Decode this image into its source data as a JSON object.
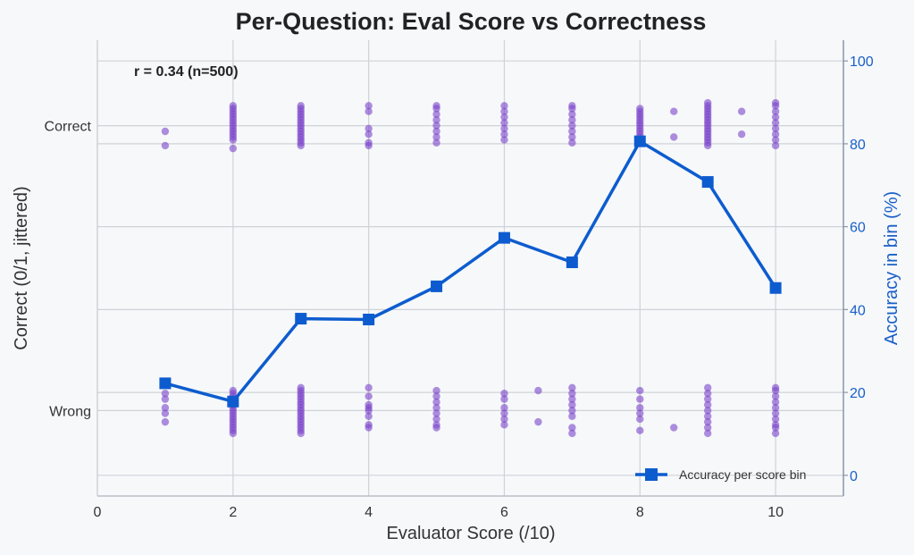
{
  "chart_data": {
    "type": "scatter",
    "title": "Per-Question: Eval Score vs Correctness",
    "xlabel": "Evaluator Score (/10)",
    "ylabel": "Correct (0/1, jittered)",
    "y2label": "Accuracy in bin (%)",
    "annotation": "r = 0.34  (n=500)",
    "xlim": [
      0,
      11
    ],
    "ylim": [
      -0.3,
      1.3
    ],
    "y2lim": [
      -5,
      105
    ],
    "x_ticks": [
      0,
      2,
      4,
      6,
      8,
      10
    ],
    "y_ticks": [
      {
        "value": 0,
        "label": "Wrong"
      },
      {
        "value": 1,
        "label": "Correct"
      }
    ],
    "y2_ticks": [
      0,
      20,
      40,
      60,
      80,
      100
    ],
    "grid": true,
    "legend": {
      "placement": "lower-right",
      "entries": [
        "Accuracy per score bin"
      ]
    },
    "colors": {
      "points": "#7b45c9",
      "line": "#0d5ccf",
      "right_axis": "#1a5fc8"
    },
    "series": [
      {
        "name": "Accuracy per score bin",
        "type": "line",
        "axis": "right",
        "x": [
          1,
          2,
          3,
          4,
          5,
          6,
          7,
          8,
          9,
          10
        ],
        "y": [
          22.2,
          17.8,
          37.8,
          37.6,
          45.6,
          57.3,
          51.4,
          80.6,
          70.8,
          45.2
        ]
      }
    ],
    "scatter_groups": [
      {
        "x": 1,
        "correct": [
          0.98,
          0.93
        ],
        "wrong": [
          0.06,
          0.04,
          0.01,
          -0.01,
          -0.04
        ]
      },
      {
        "x": 2,
        "correct": [
          1.07,
          1.06,
          1.05,
          1.04,
          1.03,
          1.02,
          1.01,
          1.0,
          0.99,
          0.98,
          0.97,
          0.96,
          0.95,
          0.92
        ],
        "wrong": [
          0.07,
          0.06,
          0.05,
          0.04,
          0.03,
          0.02,
          0.01,
          0.0,
          -0.01,
          -0.02,
          -0.03,
          -0.04,
          -0.05,
          -0.06,
          -0.07,
          -0.08
        ]
      },
      {
        "x": 3,
        "correct": [
          1.07,
          1.06,
          1.05,
          1.04,
          1.03,
          1.02,
          1.01,
          1.0,
          0.99,
          0.98,
          0.97,
          0.96,
          0.95,
          0.94,
          0.93
        ],
        "wrong": [
          0.08,
          0.07,
          0.06,
          0.05,
          0.04,
          0.03,
          0.02,
          0.01,
          0.0,
          -0.01,
          -0.02,
          -0.03,
          -0.04,
          -0.05,
          -0.06,
          -0.07,
          -0.08
        ]
      },
      {
        "x": 4,
        "correct": [
          1.07,
          1.05,
          0.99,
          0.97,
          0.94,
          0.93
        ],
        "wrong": [
          0.08,
          0.05,
          0.02,
          0.01,
          0.0,
          -0.02,
          -0.05,
          -0.06
        ]
      },
      {
        "x": 5,
        "correct": [
          1.07,
          1.06,
          1.04,
          1.02,
          1.0,
          0.98,
          0.96,
          0.94
        ],
        "wrong": [
          0.07,
          0.05,
          0.03,
          0.01,
          -0.01,
          -0.03,
          -0.05,
          -0.06
        ]
      },
      {
        "x": 6,
        "correct": [
          1.07,
          1.05,
          1.03,
          1.01,
          0.99,
          0.97,
          0.95
        ],
        "wrong": [
          0.06,
          0.04,
          0.01,
          -0.01,
          -0.03,
          -0.05
        ]
      },
      {
        "x": 6.5,
        "correct": [],
        "wrong": [
          0.07,
          -0.04
        ]
      },
      {
        "x": 7,
        "correct": [
          1.07,
          1.06,
          1.04,
          1.02,
          1.0,
          0.98,
          0.96,
          0.94
        ],
        "wrong": [
          0.08,
          0.06,
          0.04,
          0.02,
          0.0,
          -0.02,
          -0.06,
          -0.08
        ]
      },
      {
        "x": 8,
        "correct": [
          1.06,
          1.05,
          1.04,
          1.03,
          1.02,
          1.01,
          1.0,
          0.99,
          0.98,
          0.97,
          0.96,
          0.95,
          0.94
        ],
        "wrong": [
          0.07,
          0.04,
          0.01,
          -0.01,
          -0.03,
          -0.07
        ]
      },
      {
        "x": 8.5,
        "correct": [
          1.05,
          0.96
        ],
        "wrong": [
          -0.06
        ]
      },
      {
        "x": 9,
        "correct": [
          1.08,
          1.07,
          1.06,
          1.05,
          1.04,
          1.03,
          1.02,
          1.01,
          1.0,
          0.99,
          0.98,
          0.97,
          0.96,
          0.95,
          0.94,
          0.93
        ],
        "wrong": [
          0.08,
          0.06,
          0.04,
          0.02,
          0.0,
          -0.02,
          -0.04,
          -0.06,
          -0.08
        ]
      },
      {
        "x": 9.5,
        "correct": [
          1.05,
          0.97
        ],
        "wrong": []
      },
      {
        "x": 10,
        "correct": [
          1.08,
          1.07,
          1.05,
          1.03,
          1.01,
          0.99,
          0.97,
          0.95,
          0.93
        ],
        "wrong": [
          0.08,
          0.07,
          0.05,
          0.03,
          0.01,
          -0.01,
          -0.03,
          -0.05,
          -0.06,
          -0.08
        ]
      }
    ]
  }
}
